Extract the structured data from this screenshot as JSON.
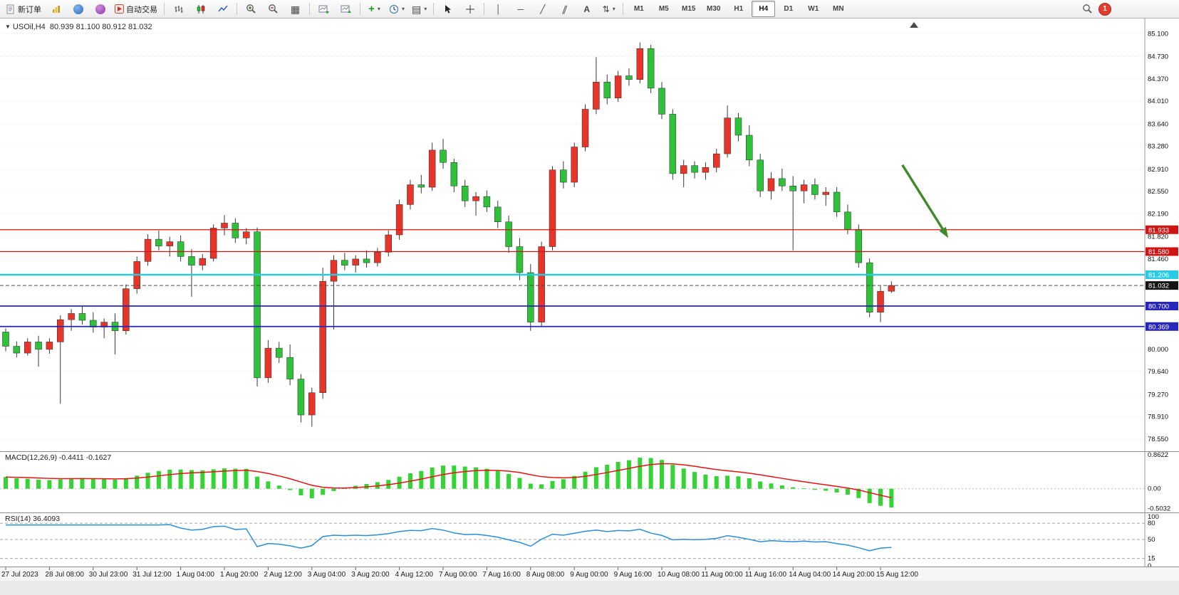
{
  "toolbar": {
    "new_order_label": "新订单",
    "auto_trading_label": "自动交易",
    "timeframes": [
      "M1",
      "M5",
      "M15",
      "M30",
      "H1",
      "H4",
      "D1",
      "W1",
      "MN"
    ],
    "active_timeframe": "H4",
    "notification_count": "1",
    "icons": {
      "title_dropdown": "▼",
      "grid": "▦",
      "add_indicator": "+",
      "dropdown_caret": "▾",
      "template": "▤",
      "vertical_line": "│",
      "horizontal_line": "─",
      "trendline": "╱",
      "channel": "∥",
      "text_tool": "A",
      "arrows_tool": "⇅",
      "crosshair": "+"
    }
  },
  "chart_title": {
    "symbol_tf": "USOil,H4",
    "ohlc_text": "80.939 81.100 80.912 81.032"
  },
  "chart_data": {
    "type": "candlestick",
    "symbol": "USOil",
    "timeframe": "H4",
    "ohlc_display": {
      "open": "80.939",
      "high": "81.100",
      "low": "80.912",
      "close": "81.032"
    },
    "price_top": 85.3,
    "price_bottom": 78.4,
    "up_color": "#e8352a",
    "down_color": "#2fc13a",
    "wick_color": "#3a3a3a",
    "y_ticks": [
      "85.100",
      "84.730",
      "84.370",
      "84.010",
      "83.640",
      "83.280",
      "82.910",
      "82.550",
      "82.190",
      "81.820",
      "81.460",
      "80.000",
      "79.640",
      "79.270",
      "78.910",
      "78.550"
    ],
    "candles": [
      [
        80.28,
        80.34,
        79.97,
        80.05
      ],
      [
        80.05,
        80.13,
        79.87,
        79.94
      ],
      [
        79.94,
        80.18,
        79.9,
        80.12
      ],
      [
        80.12,
        80.22,
        79.72,
        80.0
      ],
      [
        80.0,
        80.18,
        79.93,
        80.12
      ],
      [
        80.12,
        80.55,
        79.12,
        80.48
      ],
      [
        80.48,
        80.65,
        80.3,
        80.58
      ],
      [
        80.58,
        80.7,
        80.4,
        80.47
      ],
      [
        80.47,
        80.6,
        80.27,
        80.36
      ],
      [
        80.36,
        80.5,
        80.18,
        80.44
      ],
      [
        80.44,
        80.58,
        79.92,
        80.3
      ],
      [
        80.3,
        81.05,
        80.24,
        80.98
      ],
      [
        80.98,
        81.5,
        80.9,
        81.42
      ],
      [
        81.42,
        81.86,
        81.35,
        81.78
      ],
      [
        81.78,
        81.92,
        81.6,
        81.67
      ],
      [
        81.67,
        81.82,
        81.5,
        81.74
      ],
      [
        81.74,
        81.84,
        81.42,
        81.5
      ],
      [
        81.5,
        81.62,
        80.85,
        81.36
      ],
      [
        81.36,
        81.54,
        81.28,
        81.47
      ],
      [
        81.47,
        82.02,
        81.42,
        81.96
      ],
      [
        81.96,
        82.17,
        81.84,
        82.04
      ],
      [
        82.04,
        82.12,
        81.72,
        81.8
      ],
      [
        81.8,
        81.96,
        81.7,
        81.9
      ],
      [
        81.9,
        81.97,
        79.4,
        79.54
      ],
      [
        79.54,
        80.15,
        79.46,
        80.02
      ],
      [
        80.02,
        80.12,
        79.78,
        79.87
      ],
      [
        79.87,
        80.08,
        79.42,
        79.52
      ],
      [
        79.52,
        79.6,
        78.82,
        78.94
      ],
      [
        78.94,
        79.38,
        78.75,
        79.3
      ],
      [
        79.3,
        81.32,
        79.2,
        81.1
      ],
      [
        81.1,
        81.52,
        80.32,
        81.44
      ],
      [
        81.44,
        81.56,
        81.28,
        81.36
      ],
      [
        81.36,
        81.52,
        81.24,
        81.46
      ],
      [
        81.46,
        81.6,
        81.32,
        81.4
      ],
      [
        81.4,
        81.64,
        81.34,
        81.57
      ],
      [
        81.57,
        81.92,
        81.5,
        81.85
      ],
      [
        81.85,
        82.42,
        81.77,
        82.34
      ],
      [
        82.34,
        82.74,
        82.26,
        82.66
      ],
      [
        82.66,
        82.82,
        82.52,
        82.62
      ],
      [
        82.62,
        83.34,
        82.56,
        83.22
      ],
      [
        83.22,
        83.4,
        82.92,
        83.02
      ],
      [
        83.02,
        83.08,
        82.54,
        82.64
      ],
      [
        82.64,
        82.74,
        82.3,
        82.4
      ],
      [
        82.4,
        82.54,
        82.16,
        82.47
      ],
      [
        82.47,
        82.57,
        82.22,
        82.3
      ],
      [
        82.3,
        82.4,
        81.96,
        82.06
      ],
      [
        82.06,
        82.16,
        81.56,
        81.66
      ],
      [
        81.66,
        81.8,
        81.12,
        81.24
      ],
      [
        81.24,
        81.38,
        80.3,
        80.44
      ],
      [
        80.44,
        81.74,
        80.36,
        81.66
      ],
      [
        81.66,
        82.96,
        81.6,
        82.9
      ],
      [
        82.9,
        83.04,
        82.6,
        82.7
      ],
      [
        82.7,
        83.34,
        82.62,
        83.27
      ],
      [
        83.27,
        83.96,
        83.2,
        83.88
      ],
      [
        83.88,
        84.72,
        83.8,
        84.32
      ],
      [
        84.32,
        84.44,
        83.96,
        84.06
      ],
      [
        84.06,
        84.5,
        84.0,
        84.42
      ],
      [
        84.42,
        84.54,
        84.26,
        84.36
      ],
      [
        84.36,
        84.96,
        84.3,
        84.86
      ],
      [
        84.86,
        84.92,
        84.14,
        84.22
      ],
      [
        84.22,
        84.32,
        83.72,
        83.8
      ],
      [
        83.8,
        83.88,
        82.74,
        82.84
      ],
      [
        82.84,
        83.06,
        82.62,
        82.97
      ],
      [
        82.97,
        83.04,
        82.76,
        82.86
      ],
      [
        82.86,
        83.02,
        82.74,
        82.94
      ],
      [
        82.94,
        83.24,
        82.86,
        83.16
      ],
      [
        83.16,
        83.94,
        83.1,
        83.74
      ],
      [
        83.74,
        83.82,
        83.36,
        83.46
      ],
      [
        83.46,
        83.62,
        82.96,
        83.06
      ],
      [
        83.06,
        83.16,
        82.46,
        82.56
      ],
      [
        82.56,
        82.86,
        82.42,
        82.76
      ],
      [
        82.76,
        82.92,
        82.56,
        82.64
      ],
      [
        82.64,
        82.8,
        81.6,
        82.56
      ],
      [
        82.56,
        82.74,
        82.36,
        82.66
      ],
      [
        82.66,
        82.76,
        82.42,
        82.5
      ],
      [
        82.5,
        82.62,
        82.32,
        82.54
      ],
      [
        82.54,
        82.62,
        82.14,
        82.22
      ],
      [
        82.22,
        82.34,
        81.86,
        81.94
      ],
      [
        81.94,
        82.02,
        81.32,
        81.4
      ],
      [
        81.4,
        81.47,
        80.52,
        80.6
      ],
      [
        80.6,
        81.02,
        80.44,
        80.939
      ],
      [
        80.939,
        81.1,
        80.912,
        81.032
      ]
    ],
    "time_ticks": {
      "indices": [
        0,
        4,
        8,
        12,
        16,
        20,
        24,
        28,
        32,
        36,
        40,
        44,
        48,
        52,
        56,
        60,
        64,
        68,
        72,
        76,
        80
      ],
      "labels": [
        "27 Jul 2023",
        "28 Jul 08:00",
        "30 Jul 23:00",
        "31 Jul 12:00",
        "1 Aug 04:00",
        "1 Aug 20:00",
        "2 Aug 12:00",
        "3 Aug 04:00",
        "3 Aug 20:00",
        "4 Aug 12:00",
        "7 Aug 00:00",
        "7 Aug 16:00",
        "8 Aug 08:00",
        "9 Aug 00:00",
        "9 Aug 16:00",
        "10 Aug 08:00",
        "11 Aug 00:00",
        "11 Aug 16:00",
        "14 Aug 04:00",
        "14 Aug 20:00",
        "15 Aug 12:00"
      ]
    },
    "hlines": [
      {
        "price": 81.933,
        "label": "81.933",
        "color": "#cf1414",
        "width": 1.3
      },
      {
        "price": 81.58,
        "label": "81.580",
        "color": "#cf1414",
        "width": 1.3
      },
      {
        "price": 81.206,
        "label": "81.206",
        "color": "#29cbe4",
        "width": 2.4
      },
      {
        "price": 80.7,
        "label": "80.700",
        "color": "#2626bd",
        "width": 1.8
      },
      {
        "price": 80.369,
        "label": "80.369",
        "color": "#2626bd",
        "width": 1.8
      }
    ],
    "current_price": {
      "value": 81.032,
      "label": "81.032",
      "line_color": "#4a4a4a",
      "tag_bg": "#141414"
    },
    "arrow": {
      "from_index": 82.0,
      "from_price": 82.98,
      "to_index": 86.2,
      "to_price": 81.8,
      "color": "#3c8a28"
    },
    "macd": {
      "label": "MACD(12,26,9) -0.4411 -0.1627",
      "value": -0.4411,
      "signal": -0.1627,
      "y_ticks": [
        "0.8622",
        "0.00",
        "-0.5032"
      ],
      "range_top": 0.95,
      "range_bottom": -0.6,
      "histogram_color": "#35d435",
      "signal_color": "#e81212"
    },
    "rsi": {
      "label": "RSI(14) 36.4093",
      "value": 36.4093,
      "levels": [
        80,
        50,
        15
      ],
      "y_ticks": [
        "100",
        "80",
        "50",
        "15",
        "0"
      ],
      "color": "#2a8fd8"
    }
  }
}
